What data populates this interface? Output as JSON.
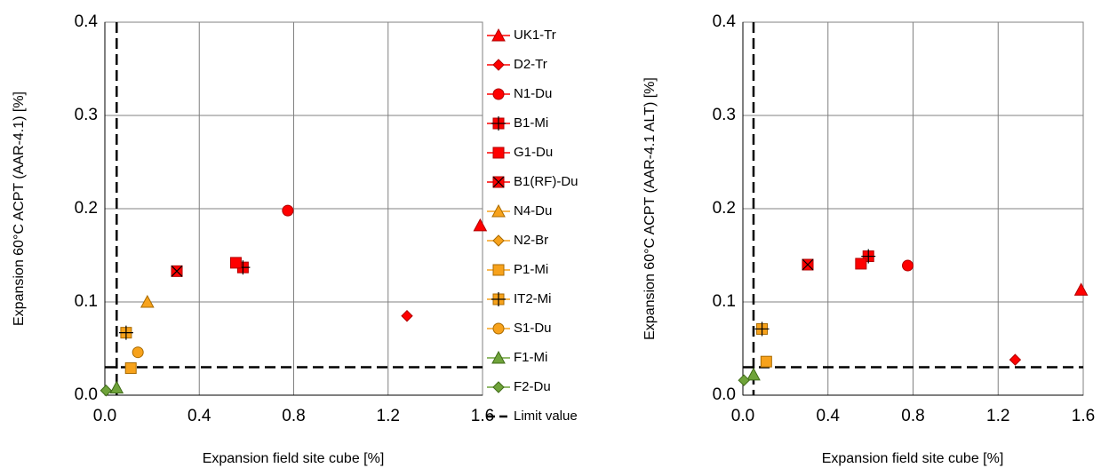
{
  "chart_data": [
    {
      "type": "scatter",
      "xlabel": "Expansion field site cube [%]",
      "ylabel": "Expansion 60°C ACPT (AAR-4.1) [%]",
      "xlim": [
        0,
        1.6
      ],
      "ylim": [
        0,
        0.4
      ],
      "xticks": [
        {
          "value": 0,
          "label": "0.0"
        },
        0.4,
        0.8,
        1.2,
        1.6
      ],
      "yticks": [
        {
          "value": 0,
          "label": "0.0"
        },
        0.1,
        0.2,
        0.3,
        0.4
      ],
      "grid": true,
      "series": [
        {
          "name": "UK1-Tr",
          "color": "#ff0000",
          "marker": "triangle",
          "x": [
            1.59
          ],
          "y": [
            0.182
          ]
        },
        {
          "name": "D2-Tr",
          "color": "#ff0000",
          "marker": "diamond",
          "x": [
            1.28
          ],
          "y": [
            0.085
          ]
        },
        {
          "name": "N1-Du",
          "color": "#ff0000",
          "marker": "circle",
          "x": [
            0.775
          ],
          "y": [
            0.198
          ]
        },
        {
          "name": "B1-Mi",
          "color": "#ff0000",
          "marker": "square-plus",
          "x": [
            0.585
          ],
          "y": [
            0.137
          ]
        },
        {
          "name": "G1-Du",
          "color": "#ff0000",
          "marker": "square",
          "x": [
            0.555
          ],
          "y": [
            0.142
          ]
        },
        {
          "name": "B1(RF)-Du",
          "color": "#ff0000",
          "marker": "square-x",
          "x": [
            0.305
          ],
          "y": [
            0.133
          ]
        },
        {
          "name": "N4-Du",
          "color": "#f7a21b",
          "marker": "triangle",
          "x": [
            0.18
          ],
          "y": [
            0.1
          ]
        },
        {
          "name": "N2-Br",
          "color": "#f7a21b",
          "marker": "diamond",
          "x": [],
          "y": []
        },
        {
          "name": "P1-Mi",
          "color": "#f7a21b",
          "marker": "square",
          "x": [
            0.11
          ],
          "y": [
            0.029
          ]
        },
        {
          "name": "IT2-Mi",
          "color": "#f7a21b",
          "marker": "plus",
          "x": [
            0.09
          ],
          "y": [
            0.067
          ]
        },
        {
          "name": "S1-Du",
          "color": "#f7a21b",
          "marker": "circle",
          "x": [
            0.14
          ],
          "y": [
            0.046
          ]
        },
        {
          "name": "F1-Mi",
          "color": "#6fa33a",
          "marker": "triangle",
          "x": [
            0.05
          ],
          "y": [
            0.008
          ]
        },
        {
          "name": "F2-Du",
          "color": "#6fa33a",
          "marker": "diamond",
          "x": [
            0.005
          ],
          "y": [
            0.005
          ]
        }
      ],
      "limit": {
        "name": "Limit value",
        "x": 0.05,
        "y": 0.03,
        "color": "#000000"
      }
    },
    {
      "type": "scatter",
      "xlabel": "Expansion field site cube [%]",
      "ylabel": "Expansion 60°C ACPT (AAR-4.1 ALT) [%]",
      "xlim": [
        0,
        1.6
      ],
      "ylim": [
        0,
        0.4
      ],
      "xticks": [
        {
          "value": 0,
          "label": "0.0"
        },
        0.4,
        0.8,
        1.2,
        1.6
      ],
      "yticks": [
        {
          "value": 0,
          "label": "0.0"
        },
        0.1,
        0.2,
        0.3,
        0.4
      ],
      "grid": true,
      "series": [
        {
          "color": "#ff0000",
          "marker": "triangle",
          "x": [
            1.59
          ],
          "y": [
            0.113
          ]
        },
        {
          "color": "#ff0000",
          "marker": "diamond",
          "x": [
            1.28
          ],
          "y": [
            0.038
          ]
        },
        {
          "color": "#ff0000",
          "marker": "circle",
          "x": [
            0.775
          ],
          "y": [
            0.139
          ]
        },
        {
          "color": "#ff0000",
          "marker": "square-plus",
          "x": [
            0.59
          ],
          "y": [
            0.149
          ]
        },
        {
          "color": "#ff0000",
          "marker": "square",
          "x": [
            0.555
          ],
          "y": [
            0.141
          ]
        },
        {
          "color": "#ff0000",
          "marker": "square-x",
          "x": [
            0.305
          ],
          "y": [
            0.14
          ]
        },
        {
          "color": "#f7a21b",
          "marker": "triangle",
          "x": [],
          "y": []
        },
        {
          "color": "#f7a21b",
          "marker": "diamond",
          "x": [],
          "y": []
        },
        {
          "color": "#f7a21b",
          "marker": "square",
          "x": [
            0.11
          ],
          "y": [
            0.036
          ]
        },
        {
          "color": "#f7a21b",
          "marker": "plus",
          "x": [
            0.09
          ],
          "y": [
            0.071
          ]
        },
        {
          "color": "#f7a21b",
          "marker": "circle",
          "x": [],
          "y": []
        },
        {
          "color": "#6fa33a",
          "marker": "triangle",
          "x": [
            0.05
          ],
          "y": [
            0.022
          ]
        },
        {
          "color": "#6fa33a",
          "marker": "diamond",
          "x": [
            0.005
          ],
          "y": [
            0.016
          ]
        }
      ],
      "limit": {
        "x": 0.05,
        "y": 0.03,
        "color": "#000000"
      }
    }
  ]
}
